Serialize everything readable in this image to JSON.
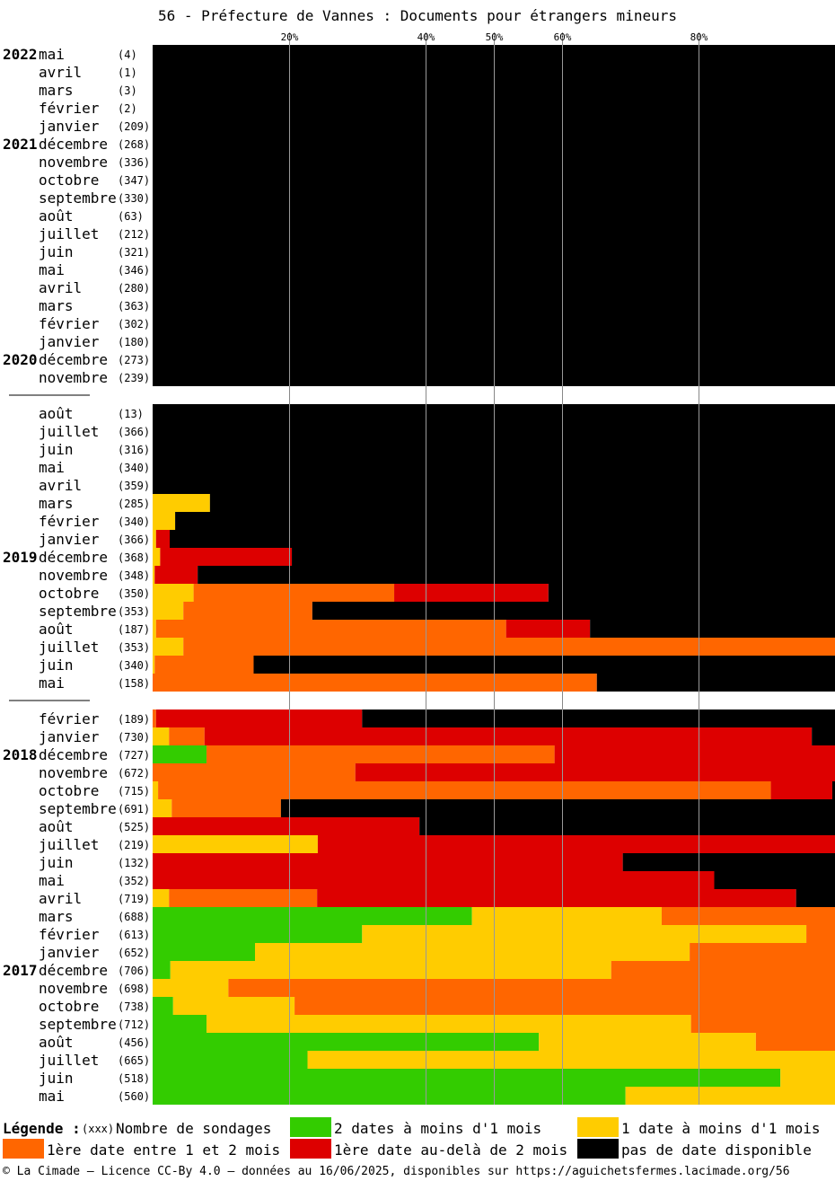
{
  "chart_data": {
    "type": "bar",
    "stacked": true,
    "orientation": "horizontal",
    "title": "56 - Préfecture de Vannes : Documents pour étrangers mineurs",
    "x_ticks": [
      "20%",
      "40%",
      "50%",
      "60%",
      "80%"
    ],
    "x_tick_values": [
      20,
      40,
      50,
      60,
      80
    ],
    "xlim": [
      0,
      100
    ],
    "grid": true,
    "series_order": [
      "green",
      "yellow",
      "orange",
      "red",
      "black"
    ],
    "colors": {
      "green": "#33cc00",
      "yellow": "#ffcc00",
      "orange": "#ff6600",
      "red": "#dd0000",
      "black": "#000000"
    },
    "groups": [
      {
        "rows": [
          {
            "year": "2022",
            "month": "mai",
            "count": "(4)",
            "values": [
              0,
              0,
              0,
              0,
              100
            ]
          },
          {
            "year": "",
            "month": "avril",
            "count": "(1)",
            "values": [
              0,
              0,
              0,
              0,
              100
            ]
          },
          {
            "year": "",
            "month": "mars",
            "count": "(3)",
            "values": [
              0,
              0,
              0,
              0,
              100
            ]
          },
          {
            "year": "",
            "month": "février",
            "count": "(2)",
            "values": [
              0,
              0,
              0,
              0,
              100
            ]
          },
          {
            "year": "",
            "month": "janvier",
            "count": "(209)",
            "values": [
              0,
              0,
              0,
              0,
              100
            ]
          },
          {
            "year": "2021",
            "month": "décembre",
            "count": "(268)",
            "values": [
              0,
              0,
              0,
              0,
              100
            ]
          },
          {
            "year": "",
            "month": "novembre",
            "count": "(336)",
            "values": [
              0,
              0,
              0,
              0,
              100
            ]
          },
          {
            "year": "",
            "month": "octobre",
            "count": "(347)",
            "values": [
              0,
              0,
              0,
              0,
              100
            ]
          },
          {
            "year": "",
            "month": "septembre",
            "count": "(330)",
            "values": [
              0,
              0,
              0,
              0,
              100
            ]
          },
          {
            "year": "",
            "month": "août",
            "count": "(63)",
            "values": [
              0,
              0,
              0,
              0,
              100
            ]
          },
          {
            "year": "",
            "month": "juillet",
            "count": "(212)",
            "values": [
              0,
              0,
              0,
              0,
              100
            ]
          },
          {
            "year": "",
            "month": "juin",
            "count": "(321)",
            "values": [
              0,
              0,
              0,
              0,
              100
            ]
          },
          {
            "year": "",
            "month": "mai",
            "count": "(346)",
            "values": [
              0,
              0,
              0,
              0,
              100
            ]
          },
          {
            "year": "",
            "month": "avril",
            "count": "(280)",
            "values": [
              0,
              0,
              0,
              0,
              100
            ]
          },
          {
            "year": "",
            "month": "mars",
            "count": "(363)",
            "values": [
              0,
              0,
              0,
              0,
              100
            ]
          },
          {
            "year": "",
            "month": "février",
            "count": "(302)",
            "values": [
              0,
              0,
              0,
              0,
              100
            ]
          },
          {
            "year": "",
            "month": "janvier",
            "count": "(180)",
            "values": [
              0,
              0,
              0,
              0,
              100
            ]
          },
          {
            "year": "2020",
            "month": "décembre",
            "count": "(273)",
            "values": [
              0,
              0,
              0,
              0,
              100
            ]
          },
          {
            "year": "",
            "month": "novembre",
            "count": "(239)",
            "values": [
              0,
              0,
              0,
              0,
              100
            ]
          }
        ]
      },
      {
        "rows": [
          {
            "year": "",
            "month": "août",
            "count": "(13)",
            "values": [
              0,
              0,
              0,
              0,
              100
            ]
          },
          {
            "year": "",
            "month": "juillet",
            "count": "(366)",
            "values": [
              0,
              0,
              0,
              0,
              100
            ]
          },
          {
            "year": "",
            "month": "juin",
            "count": "(316)",
            "values": [
              0,
              0,
              0,
              0,
              100
            ]
          },
          {
            "year": "",
            "month": "mai",
            "count": "(340)",
            "values": [
              0,
              0,
              0,
              0,
              100
            ]
          },
          {
            "year": "",
            "month": "avril",
            "count": "(359)",
            "values": [
              0,
              0,
              0,
              0,
              100
            ]
          },
          {
            "year": "",
            "month": "mars",
            "count": "(285)",
            "values": [
              0,
              8.4,
              0,
              0,
              91.6
            ]
          },
          {
            "year": "",
            "month": "février",
            "count": "(340)",
            "values": [
              0,
              3.3,
              0,
              0,
              96.7
            ]
          },
          {
            "year": "",
            "month": "janvier",
            "count": "(366)",
            "values": [
              0,
              0.5,
              0,
              2,
              97.5
            ]
          },
          {
            "year": "2019",
            "month": "décembre",
            "count": "(368)",
            "values": [
              0,
              1.1,
              0,
              19.3,
              79.6
            ]
          },
          {
            "year": "",
            "month": "novembre",
            "count": "(348)",
            "values": [
              0,
              0.3,
              0,
              6.3,
              93.4
            ]
          },
          {
            "year": "",
            "month": "octobre",
            "count": "(350)",
            "values": [
              0,
              6,
              29.4,
              22.6,
              42
            ]
          },
          {
            "year": "",
            "month": "septembre",
            "count": "(353)",
            "values": [
              0,
              4.5,
              18.9,
              0,
              76.6
            ]
          },
          {
            "year": "",
            "month": "août",
            "count": "(187)",
            "values": [
              0,
              0.5,
              51.3,
              12.3,
              35.9
            ]
          },
          {
            "year": "",
            "month": "juillet",
            "count": "(353)",
            "values": [
              0,
              4.5,
              95.5,
              0,
              0
            ]
          },
          {
            "year": "",
            "month": "juin",
            "count": "(340)",
            "values": [
              0,
              0.3,
              14.5,
              0,
              85.2
            ]
          },
          {
            "year": "",
            "month": "mai",
            "count": "(158)",
            "values": [
              0,
              0,
              65.1,
              0,
              34.9
            ]
          }
        ]
      },
      {
        "rows": [
          {
            "year": "",
            "month": "février",
            "count": "(189)",
            "values": [
              0,
              0,
              0.5,
              30.2,
              69.3
            ]
          },
          {
            "year": "",
            "month": "janvier",
            "count": "(730)",
            "values": [
              0,
              2.4,
              5.2,
              89,
              3.4
            ]
          },
          {
            "year": "2018",
            "month": "décembre",
            "count": "(727)",
            "values": [
              7.9,
              0,
              51,
              41.1,
              0
            ]
          },
          {
            "year": "",
            "month": "novembre",
            "count": "(672)",
            "values": [
              0,
              0,
              29.7,
              70.3,
              0
            ]
          },
          {
            "year": "",
            "month": "octobre",
            "count": "(715)",
            "values": [
              0,
              0.8,
              89.8,
              9,
              0.4
            ]
          },
          {
            "year": "",
            "month": "septembre",
            "count": "(691)",
            "values": [
              0,
              2.8,
              16,
              0,
              81.2
            ]
          },
          {
            "year": "",
            "month": "août",
            "count": "(525)",
            "values": [
              0,
              0,
              0,
              39.1,
              60.9
            ]
          },
          {
            "year": "",
            "month": "juillet",
            "count": "(219)",
            "values": [
              0,
              24.2,
              0,
              75.8,
              0
            ]
          },
          {
            "year": "",
            "month": "juin",
            "count": "(132)",
            "values": [
              0,
              0,
              0,
              68.9,
              31.1
            ]
          },
          {
            "year": "",
            "month": "mai",
            "count": "(352)",
            "values": [
              0,
              0,
              0,
              82.3,
              17.7
            ]
          },
          {
            "year": "",
            "month": "avril",
            "count": "(719)",
            "values": [
              0,
              2.4,
              21.7,
              70.2,
              5.7
            ]
          },
          {
            "year": "",
            "month": "mars",
            "count": "(688)",
            "values": [
              46.8,
              27.8,
              25.4,
              0,
              0
            ]
          },
          {
            "year": "",
            "month": "février",
            "count": "(613)",
            "values": [
              30.7,
              65.1,
              4.2,
              0,
              0
            ]
          },
          {
            "year": "",
            "month": "janvier",
            "count": "(652)",
            "values": [
              15,
              63.7,
              21.3,
              0,
              0
            ]
          },
          {
            "year": "2017",
            "month": "décembre",
            "count": "(706)",
            "values": [
              2.6,
              64.6,
              32.8,
              0,
              0
            ]
          },
          {
            "year": "",
            "month": "novembre",
            "count": "(698)",
            "values": [
              0,
              11.1,
              88.9,
              0,
              0
            ]
          },
          {
            "year": "",
            "month": "octobre",
            "count": "(738)",
            "values": [
              3,
              17.8,
              79.2,
              0,
              0
            ]
          },
          {
            "year": "",
            "month": "septembre",
            "count": "(712)",
            "values": [
              7.9,
              71,
              21.1,
              0,
              0
            ]
          },
          {
            "year": "",
            "month": "août",
            "count": "(456)",
            "values": [
              56.6,
              31.8,
              11.6,
              0,
              0
            ]
          },
          {
            "year": "",
            "month": "juillet",
            "count": "(665)",
            "values": [
              22.7,
              77.3,
              0,
              0,
              0
            ]
          },
          {
            "year": "",
            "month": "juin",
            "count": "(518)",
            "values": [
              92,
              8,
              0,
              0,
              0
            ]
          },
          {
            "year": "",
            "month": "mai",
            "count": "(560)",
            "values": [
              69.3,
              30.7,
              0,
              0,
              0
            ]
          }
        ]
      }
    ],
    "legend": {
      "lead": "Légende :",
      "count_marker": "(xxx)",
      "count_text": "Nombre de sondages",
      "items": [
        {
          "key": "green",
          "label": "2 dates à moins d'1 mois"
        },
        {
          "key": "yellow",
          "label": "1 date à moins d'1 mois"
        },
        {
          "key": "orange",
          "label": "1ère date entre 1 et 2 mois"
        },
        {
          "key": "red",
          "label": "1ère date au-delà de 2 mois"
        },
        {
          "key": "black",
          "label": "pas de date disponible"
        }
      ]
    }
  },
  "footer": "© La Cimade – Licence CC-By 4.0 – données au 16/06/2025, disponibles sur https://aguichetsfermes.lacimade.org/56"
}
